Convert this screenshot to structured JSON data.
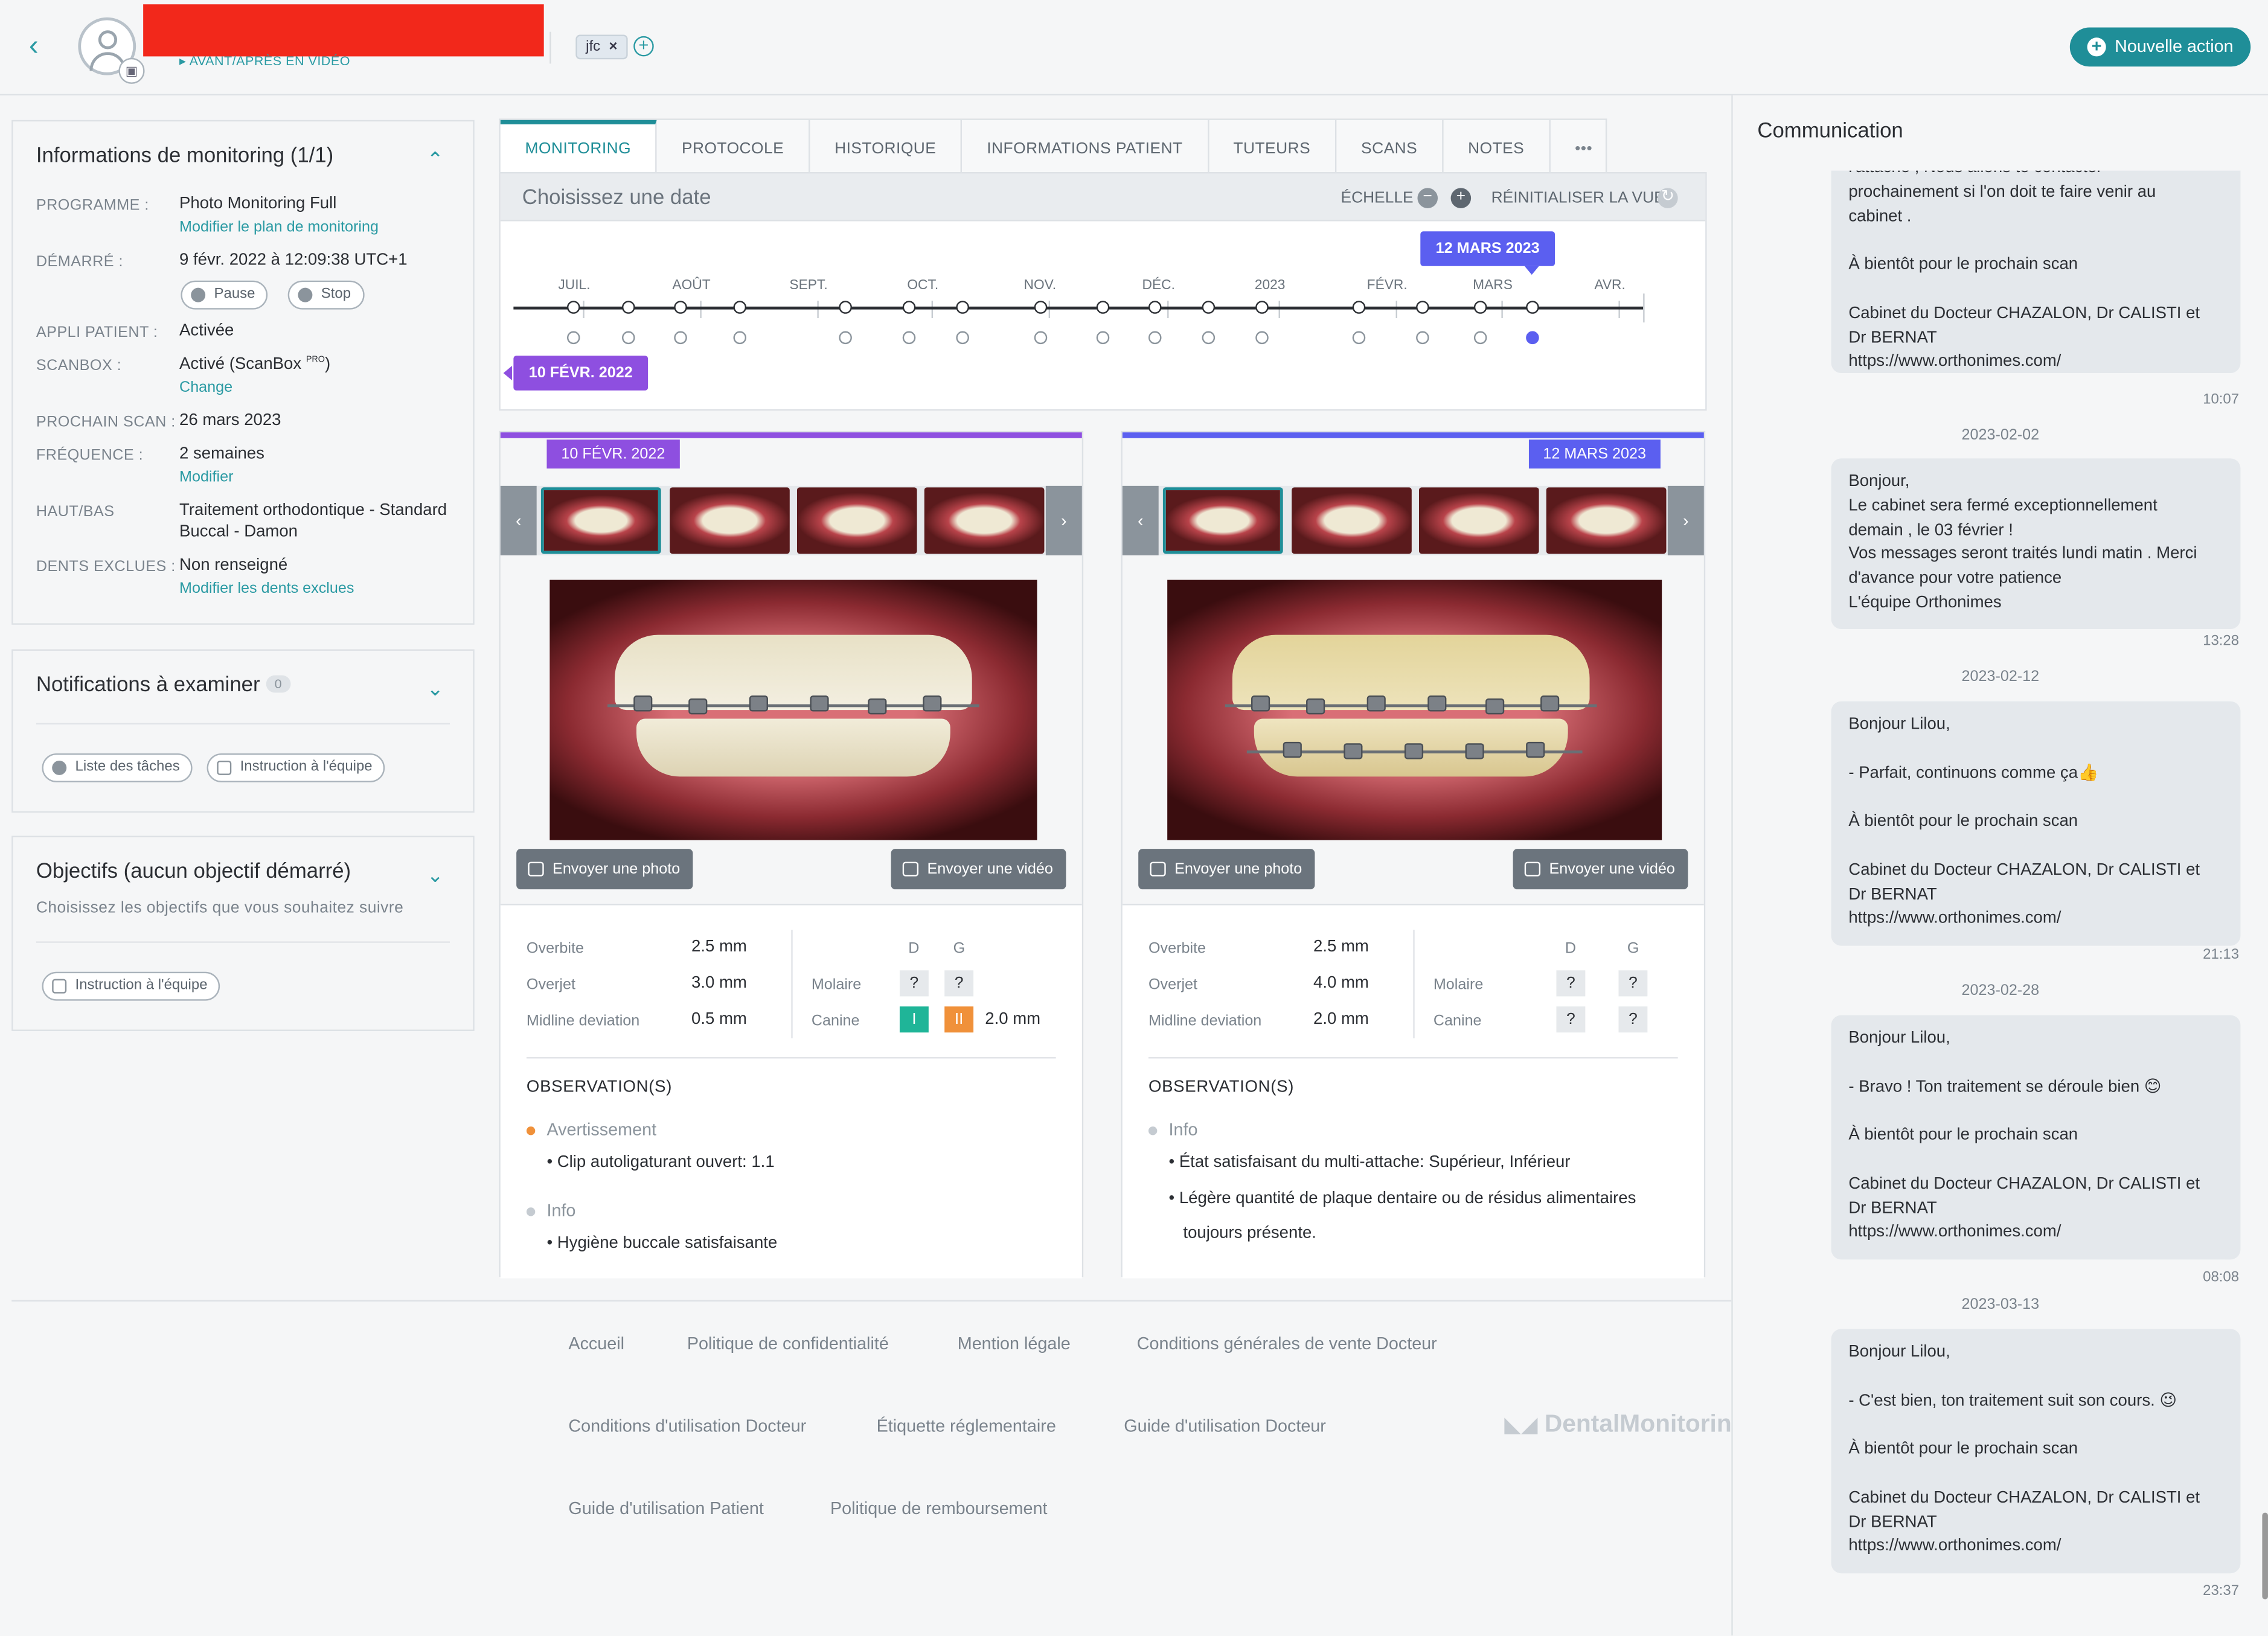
{
  "header": {
    "video_link": "▸ AVANT/APRÈS EN VIDÉO",
    "tag": "jfc",
    "tag_remove": "×",
    "new_action": "Nouvelle action"
  },
  "monitoring": {
    "title": "Informations de monitoring (1/1)",
    "programme_label": "PROGRAMME :",
    "programme_value": "Photo Monitoring Full",
    "programme_link": "Modifier le plan de monitoring",
    "started_label": "DÉMARRÉ :",
    "started_value": "9 févr. 2022 à 12:09:38 UTC+1",
    "pause": "Pause",
    "stop": "Stop",
    "app_label": "APPLI PATIENT :",
    "app_value": "Activée",
    "scanbox_label": "SCANBOX :",
    "scanbox_value": "Activé (ScanBox",
    "scanbox_sup": "PRO",
    "scanbox_close": ")",
    "scanbox_link": "Change",
    "next_label": "PROCHAIN SCAN :",
    "next_value": "26 mars 2023",
    "freq_label": "FRÉQUENCE :",
    "freq_value": "2 semaines",
    "freq_link": "Modifier",
    "hb_label": "HAUT/BAS",
    "hb_value1": "Traitement orthodontique - Standard",
    "hb_value2": "Buccal - Damon",
    "teeth_label": "DENTS EXCLUES :",
    "teeth_value": "Non renseigné",
    "teeth_link": "Modifier les dents exclues"
  },
  "notifications": {
    "title": "Notifications à examiner",
    "count": "0",
    "tasks": "Liste des tâches",
    "instruction": "Instruction à l'équipe"
  },
  "objectives": {
    "title": "Objectifs (aucun objectif démarré)",
    "subtitle": "Choisissez les objectifs que vous souhaitez suivre",
    "instruction": "Instruction à l'équipe"
  },
  "tabs": [
    "MONITORING",
    "PROTOCOLE",
    "HISTORIQUE",
    "INFORMATIONS PATIENT",
    "TUTEURS",
    "SCANS",
    "NOTES",
    "•••"
  ],
  "timeline": {
    "title": "Choisissez une date",
    "scale": "ÉCHELLE",
    "reset": "RÉINITIALISER LA VUE",
    "months": [
      "JUIL.",
      "AOÛT",
      "SEPT.",
      "OCT.",
      "NOV.",
      "DÉC.",
      "2023",
      "FÉVR.",
      "MARS",
      "AVR."
    ],
    "selected_bubble": "12 MARS 2023",
    "start_bubble": "10 FÉVR. 2022"
  },
  "left_photo": {
    "date": "10 FÉVR. 2022",
    "send_photo": "Envoyer une photo",
    "send_video": "Envoyer une vidéo",
    "overbite_label": "Overbite",
    "overbite": "2.5 mm",
    "overjet_label": "Overjet",
    "overjet": "3.0 mm",
    "midline_label": "Midline deviation",
    "midline": "0.5 mm",
    "d": "D",
    "g": "G",
    "molaire": "Molaire",
    "molaire_d": "?",
    "molaire_g": "?",
    "canine": "Canine",
    "canine_d": "I",
    "canine_g": "II",
    "canine_mm": "2.0 mm",
    "obs_title": "OBSERVATION(S)",
    "warn": "Avertissement",
    "warn_item": "Clip autoligaturant ouvert: 1.1",
    "info": "Info",
    "info_item": "Hygiène buccale satisfaisante"
  },
  "right_photo": {
    "date": "12 MARS 2023",
    "send_photo": "Envoyer une photo",
    "send_video": "Envoyer une vidéo",
    "overbite_label": "Overbite",
    "overbite": "2.5 mm",
    "overjet_label": "Overjet",
    "overjet": "4.0 mm",
    "midline_label": "Midline deviation",
    "midline": "2.0 mm",
    "d": "D",
    "g": "G",
    "molaire": "Molaire",
    "molaire_d": "?",
    "molaire_g": "?",
    "canine": "Canine",
    "canine_d": "?",
    "canine_g": "?",
    "obs_title": "OBSERVATION(S)",
    "info": "Info",
    "info_item1": "État satisfaisant du multi-attache: Supérieur, Inférieur",
    "info_item2a": "Légère quantité de plaque dentaire ou de résidus alimentaires",
    "info_item2b": "toujours présente."
  },
  "footer": {
    "accueil": "Accueil",
    "privacy": "Politique de confidentialité",
    "legal": "Mention légale",
    "cgv": "Conditions générales de vente Docteur",
    "cgu": "Conditions d'utilisation Docteur",
    "label": "Étiquette réglementaire",
    "guide_doc": "Guide d'utilisation Docteur",
    "logo": "DentalMonitoring",
    "guide_pat": "Guide d'utilisation Patient",
    "refund": "Politique de remboursement"
  },
  "communication": {
    "title": "Communication",
    "messages": [
      {
        "text": "l'attache , Nous allons te contacter\nprochainement si l'on doit te faire venir au\ncabinet .\n\nÀ bientôt pour le prochain scan\n\nCabinet du Docteur CHAZALON, Dr CALISTI et\nDr BERNAT\nhttps://www.orthonimes.com/",
        "time": "10:07"
      },
      {
        "date": "2023-02-02",
        "text": "Bonjour,\nLe cabinet sera fermé exceptionnellement\ndemain , le 03 février !\nVos messages seront traités lundi matin . Merci\nd'avance pour votre patience\nL'équipe Orthonimes",
        "time": "13:28"
      },
      {
        "date": "2023-02-12",
        "text": "Bonjour Lilou,\n\n- Parfait, continuons comme ça👍\n\nÀ bientôt pour le prochain scan\n\nCabinet du Docteur CHAZALON, Dr CALISTI et\nDr BERNAT\nhttps://www.orthonimes.com/",
        "time": "21:13"
      },
      {
        "date": "2023-02-28",
        "text": "Bonjour Lilou,\n\n- Bravo ! Ton traitement se déroule bien 😊\n\nÀ bientôt pour le prochain scan\n\nCabinet du Docteur CHAZALON, Dr CALISTI et\nDr BERNAT\nhttps://www.orthonimes.com/",
        "time": "08:08"
      },
      {
        "date": "2023-03-13",
        "text": "Bonjour Lilou,\n\n- C'est bien, ton traitement suit son cours. 😉\n\nÀ bientôt pour le prochain scan\n\nCabinet du Docteur CHAZALON, Dr CALISTI et\nDr BERNAT\nhttps://www.orthonimes.com/",
        "time": "23:37"
      }
    ]
  }
}
